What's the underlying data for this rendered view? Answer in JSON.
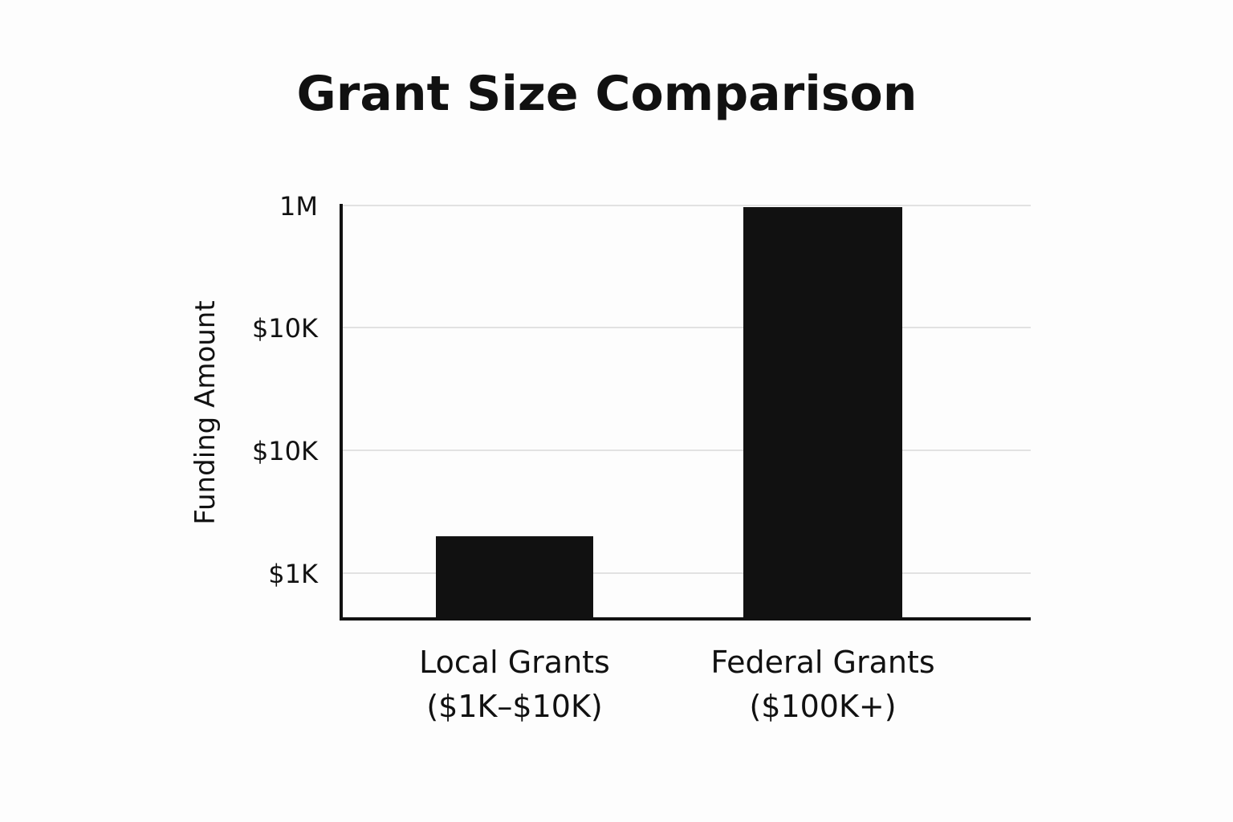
{
  "chart_data": {
    "type": "bar",
    "title": "Grant Size Comparison",
    "xlabel": "",
    "ylabel": "Funding Amount",
    "yscale": "log",
    "y_tick_labels": [
      "$1K",
      "$10K",
      "$10K",
      "1M"
    ],
    "categories": [
      [
        "Local Grants",
        "($1K–$10K)"
      ],
      [
        "Federal Grants",
        "($100K+)"
      ]
    ],
    "values": [
      2000,
      1000000
    ],
    "grid": true,
    "colors": {
      "bar": "#111111",
      "grid": "#e2e2e2",
      "axis": "#111111",
      "background": "#fdfdfd"
    }
  }
}
